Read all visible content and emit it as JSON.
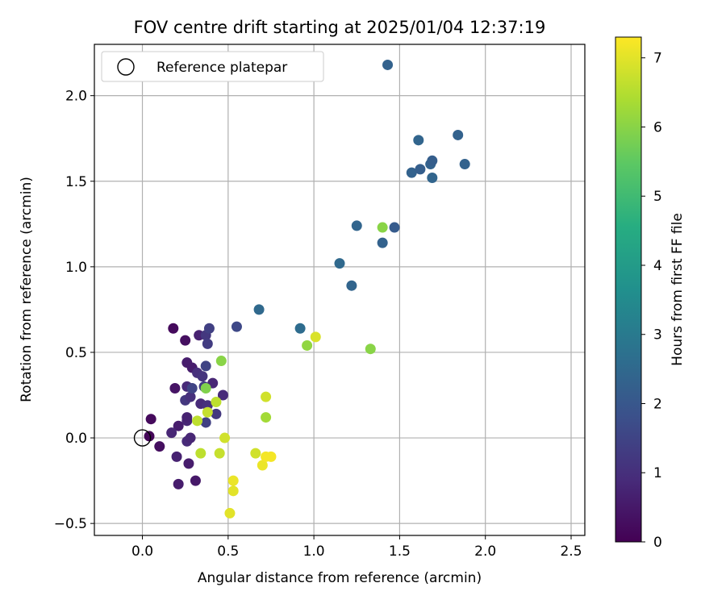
{
  "chart_data": {
    "type": "scatter",
    "title": "FOV centre drift starting at 2025/01/04 12:37:19",
    "xlabel": "Angular distance from reference (arcmin)",
    "ylabel": "Rotation from reference (arcmin)",
    "xlim": [
      -0.28,
      2.58
    ],
    "ylim": [
      -0.57,
      2.3
    ],
    "xticks": [
      0.0,
      0.5,
      1.0,
      1.5,
      2.0,
      2.5
    ],
    "yticks": [
      -0.5,
      0.0,
      0.5,
      1.0,
      1.5,
      2.0
    ],
    "xtick_labels": [
      "0.0",
      "0.5",
      "1.0",
      "1.5",
      "2.0",
      "2.5"
    ],
    "ytick_labels": [
      "−0.5",
      "0.0",
      "0.5",
      "1.0",
      "1.5",
      "2.0"
    ],
    "grid": true,
    "legend": {
      "placement": "upper-left",
      "label": "Reference platepar",
      "marker": "open-circle"
    },
    "reference_point": {
      "x": 0.0,
      "y": 0.0
    },
    "colorbar": {
      "label": "Hours from first FF file",
      "colormap": "viridis",
      "range": [
        0,
        7.3
      ],
      "ticks": [
        0,
        1,
        2,
        3,
        4,
        5,
        6,
        7
      ],
      "tick_labels": [
        "0",
        "1",
        "2",
        "3",
        "4",
        "5",
        "6",
        "7"
      ]
    },
    "points": [
      {
        "x": 0.04,
        "y": 0.01,
        "c": 0.1
      },
      {
        "x": 0.05,
        "y": 0.11,
        "c": 0.2
      },
      {
        "x": 0.1,
        "y": -0.05,
        "c": 0.3
      },
      {
        "x": 0.18,
        "y": 0.64,
        "c": 0.2
      },
      {
        "x": 0.19,
        "y": 0.29,
        "c": 0.4
      },
      {
        "x": 0.2,
        "y": -0.11,
        "c": 0.7
      },
      {
        "x": 0.21,
        "y": -0.27,
        "c": 0.6
      },
      {
        "x": 0.21,
        "y": 0.07,
        "c": 0.6
      },
      {
        "x": 0.17,
        "y": 0.03,
        "c": 0.8
      },
      {
        "x": 0.25,
        "y": 0.57,
        "c": 0.3
      },
      {
        "x": 0.25,
        "y": 0.22,
        "c": 1.2
      },
      {
        "x": 0.26,
        "y": 0.44,
        "c": 0.6
      },
      {
        "x": 0.26,
        "y": 0.3,
        "c": 0.9
      },
      {
        "x": 0.26,
        "y": 0.1,
        "c": 0.8
      },
      {
        "x": 0.26,
        "y": 0.12,
        "c": 0.7
      },
      {
        "x": 0.26,
        "y": -0.02,
        "c": 0.9
      },
      {
        "x": 0.27,
        "y": -0.15,
        "c": 0.6
      },
      {
        "x": 0.28,
        "y": 0.0,
        "c": 0.8
      },
      {
        "x": 0.28,
        "y": 0.24,
        "c": 1.0
      },
      {
        "x": 0.29,
        "y": 0.29,
        "c": 1.5
      },
      {
        "x": 0.29,
        "y": 0.41,
        "c": 0.6
      },
      {
        "x": 0.31,
        "y": -0.25,
        "c": 0.5
      },
      {
        "x": 0.32,
        "y": 0.38,
        "c": 1.0
      },
      {
        "x": 0.33,
        "y": 0.6,
        "c": 0.7
      },
      {
        "x": 0.34,
        "y": 0.2,
        "c": 0.9
      },
      {
        "x": 0.35,
        "y": 0.36,
        "c": 1.1
      },
      {
        "x": 0.36,
        "y": 0.3,
        "c": 1.3
      },
      {
        "x": 0.37,
        "y": 0.09,
        "c": 1.4
      },
      {
        "x": 0.37,
        "y": 0.6,
        "c": 1.2
      },
      {
        "x": 0.37,
        "y": 0.42,
        "c": 1.5
      },
      {
        "x": 0.38,
        "y": 0.55,
        "c": 1.3
      },
      {
        "x": 0.38,
        "y": 0.19,
        "c": 1.0
      },
      {
        "x": 0.39,
        "y": 0.64,
        "c": 1.4
      },
      {
        "x": 0.41,
        "y": 0.32,
        "c": 0.8
      },
      {
        "x": 0.43,
        "y": 0.14,
        "c": 1.2
      },
      {
        "x": 0.47,
        "y": 0.25,
        "c": 0.9
      },
      {
        "x": 0.55,
        "y": 0.65,
        "c": 1.6
      },
      {
        "x": 0.68,
        "y": 0.75,
        "c": 2.5
      },
      {
        "x": 0.92,
        "y": 0.64,
        "c": 2.6
      },
      {
        "x": 1.15,
        "y": 1.02,
        "c": 2.5
      },
      {
        "x": 1.22,
        "y": 0.89,
        "c": 2.4
      },
      {
        "x": 1.25,
        "y": 1.24,
        "c": 2.4
      },
      {
        "x": 1.4,
        "y": 1.14,
        "c": 2.3
      },
      {
        "x": 1.43,
        "y": 2.18,
        "c": 2.3
      },
      {
        "x": 1.47,
        "y": 1.23,
        "c": 2.1
      },
      {
        "x": 1.57,
        "y": 1.55,
        "c": 2.3
      },
      {
        "x": 1.61,
        "y": 1.74,
        "c": 2.4
      },
      {
        "x": 1.62,
        "y": 1.57,
        "c": 2.2
      },
      {
        "x": 1.68,
        "y": 1.6,
        "c": 2.3
      },
      {
        "x": 1.69,
        "y": 1.62,
        "c": 2.2
      },
      {
        "x": 1.69,
        "y": 1.52,
        "c": 2.4
      },
      {
        "x": 1.84,
        "y": 1.77,
        "c": 2.3
      },
      {
        "x": 1.88,
        "y": 1.6,
        "c": 2.3
      },
      {
        "x": 0.37,
        "y": 0.29,
        "c": 5.9
      },
      {
        "x": 0.46,
        "y": 0.45,
        "c": 6.0
      },
      {
        "x": 0.96,
        "y": 0.54,
        "c": 6.1
      },
      {
        "x": 1.33,
        "y": 0.52,
        "c": 6.0
      },
      {
        "x": 1.4,
        "y": 1.23,
        "c": 6.0
      },
      {
        "x": 0.72,
        "y": 0.12,
        "c": 6.3
      },
      {
        "x": 0.32,
        "y": 0.1,
        "c": 6.6
      },
      {
        "x": 0.34,
        "y": -0.09,
        "c": 6.6
      },
      {
        "x": 0.38,
        "y": 0.15,
        "c": 6.7
      },
      {
        "x": 0.43,
        "y": 0.21,
        "c": 6.6
      },
      {
        "x": 0.45,
        "y": -0.09,
        "c": 6.7
      },
      {
        "x": 0.48,
        "y": 0.0,
        "c": 6.8
      },
      {
        "x": 0.66,
        "y": -0.09,
        "c": 6.8
      },
      {
        "x": 0.72,
        "y": 0.24,
        "c": 6.8
      },
      {
        "x": 1.01,
        "y": 0.59,
        "c": 6.9
      },
      {
        "x": 0.51,
        "y": -0.44,
        "c": 7.0
      },
      {
        "x": 0.53,
        "y": -0.25,
        "c": 7.1
      },
      {
        "x": 0.53,
        "y": -0.31,
        "c": 7.0
      },
      {
        "x": 0.7,
        "y": -0.16,
        "c": 7.1
      },
      {
        "x": 0.72,
        "y": -0.11,
        "c": 7.2
      },
      {
        "x": 0.75,
        "y": -0.11,
        "c": 7.2
      }
    ]
  }
}
